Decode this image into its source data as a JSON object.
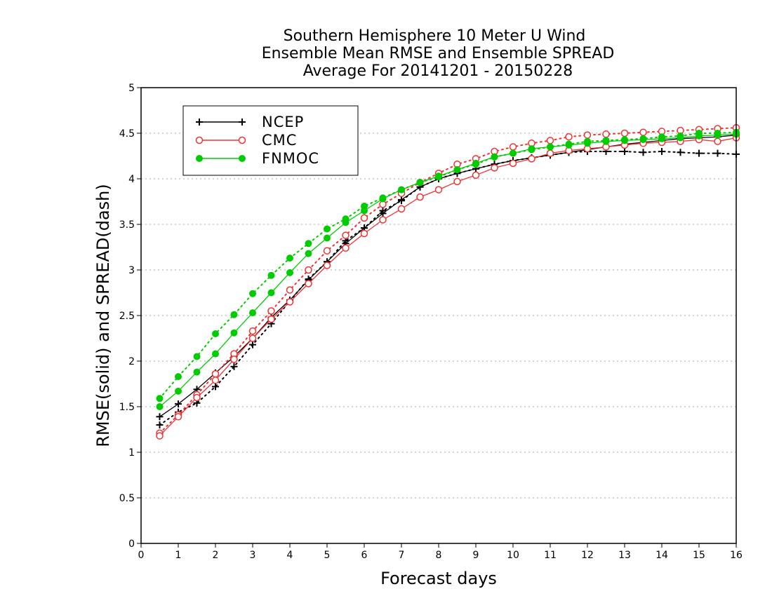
{
  "chart_data": {
    "type": "line",
    "title": [
      "Southern Hemisphere 10 Meter U Wind",
      "Ensemble Mean RMSE and Ensemble SPREAD",
      "Average For 20141201 - 20150228"
    ],
    "xlabel": "Forecast days",
    "ylabel": "RMSE(solid) and SPREAD(dash)",
    "xlim": [
      0,
      16
    ],
    "ylim": [
      0,
      5
    ],
    "x_ticks": [
      "0",
      "1",
      "2",
      "3",
      "4",
      "5",
      "6",
      "7",
      "8",
      "9",
      "10",
      "11",
      "12",
      "13",
      "14",
      "15",
      "16"
    ],
    "y_ticks": [
      "0",
      "0.5",
      "1",
      "1.5",
      "2",
      "2.5",
      "3",
      "3.5",
      "4",
      "4.5",
      "5"
    ],
    "grid": "horizontal dotted",
    "legend_position": "top-left",
    "x": [
      0.5,
      1,
      1.5,
      2,
      2.5,
      3,
      3.5,
      4,
      4.5,
      5,
      5.5,
      6,
      6.5,
      7,
      7.5,
      8,
      8.5,
      9,
      9.5,
      10,
      10.5,
      11,
      11.5,
      12,
      12.5,
      13,
      13.5,
      14,
      14.5,
      15,
      15.5,
      16
    ],
    "series": [
      {
        "name": "NCEP",
        "color": "#000000",
        "marker": "plus",
        "rmse": [
          1.39,
          1.53,
          1.69,
          1.87,
          2.05,
          2.25,
          2.48,
          2.67,
          2.89,
          3.09,
          3.29,
          3.46,
          3.62,
          3.77,
          3.91,
          4.0,
          4.06,
          4.11,
          4.16,
          4.2,
          4.23,
          4.26,
          4.29,
          4.32,
          4.35,
          4.38,
          4.4,
          4.42,
          4.44,
          4.45,
          4.46,
          4.48
        ],
        "spread": [
          1.3,
          1.44,
          1.54,
          1.72,
          1.94,
          2.18,
          2.41,
          2.66,
          2.9,
          3.09,
          3.32,
          3.46,
          3.65,
          3.76,
          3.91,
          4.0,
          4.06,
          4.11,
          4.16,
          4.2,
          4.23,
          4.26,
          4.29,
          4.3,
          4.3,
          4.3,
          4.29,
          4.3,
          4.29,
          4.28,
          4.28,
          4.27
        ]
      },
      {
        "name": "CMC",
        "color": "#ee3333",
        "marker": "open-circle",
        "rmse": [
          1.18,
          1.39,
          1.6,
          1.79,
          2.02,
          2.25,
          2.46,
          2.65,
          2.85,
          3.05,
          3.24,
          3.4,
          3.55,
          3.67,
          3.8,
          3.88,
          3.97,
          4.04,
          4.12,
          4.17,
          4.22,
          4.28,
          4.31,
          4.33,
          4.35,
          4.37,
          4.39,
          4.4,
          4.41,
          4.43,
          4.41,
          4.45
        ],
        "spread": [
          1.21,
          1.41,
          1.63,
          1.86,
          2.08,
          2.33,
          2.55,
          2.78,
          3.0,
          3.21,
          3.38,
          3.57,
          3.72,
          3.84,
          3.96,
          4.06,
          4.16,
          4.22,
          4.3,
          4.35,
          4.39,
          4.42,
          4.46,
          4.48,
          4.49,
          4.5,
          4.51,
          4.52,
          4.53,
          4.54,
          4.55,
          4.56
        ]
      },
      {
        "name": "FNMOC",
        "color": "#00cc00",
        "marker": "filled-circle",
        "rmse": [
          1.5,
          1.67,
          1.88,
          2.08,
          2.31,
          2.53,
          2.75,
          2.97,
          3.18,
          3.35,
          3.52,
          3.65,
          3.78,
          3.88,
          3.96,
          4.03,
          4.1,
          4.17,
          4.24,
          4.28,
          4.33,
          4.35,
          4.37,
          4.39,
          4.41,
          4.42,
          4.43,
          4.44,
          4.45,
          4.47,
          4.48,
          4.49
        ],
        "spread": [
          1.59,
          1.83,
          2.05,
          2.3,
          2.51,
          2.74,
          2.94,
          3.13,
          3.29,
          3.45,
          3.56,
          3.7,
          3.79,
          3.88,
          3.96,
          4.02,
          4.1,
          4.16,
          4.24,
          4.28,
          4.32,
          4.35,
          4.38,
          4.41,
          4.42,
          4.43,
          4.44,
          4.46,
          4.47,
          4.5,
          4.5,
          4.51
        ]
      }
    ]
  }
}
